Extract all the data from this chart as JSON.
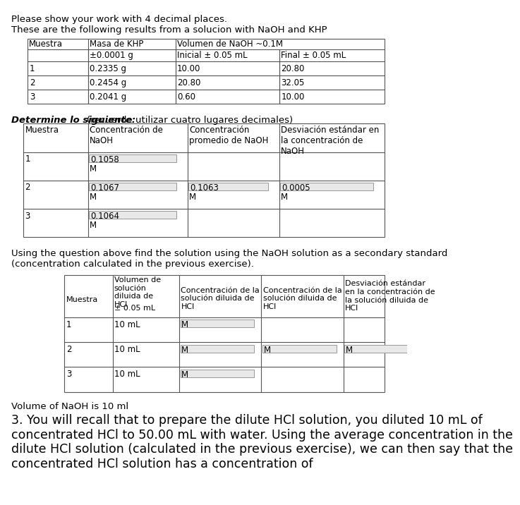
{
  "header_text": "Please show your work with 4 decimal places.",
  "intro_text": "These are the following results from a solucion with NaOH and KHP",
  "table1": {
    "rows": [
      [
        "1",
        "0.2335 g",
        "10.00",
        "20.80"
      ],
      [
        "2",
        "0.2454 g",
        "20.80",
        "32.05"
      ],
      [
        "3",
        "0.2041 g",
        "0.60",
        "10.00"
      ]
    ]
  },
  "section2_label": "Determine lo siguiente:",
  "section2_note": "(recuerde utilizar cuatro lugares decimales)",
  "table2": {
    "rows": [
      [
        "1",
        "0.1058",
        "",
        ""
      ],
      [
        "2",
        "0.1067",
        "0.1063",
        "0.0005"
      ],
      [
        "3",
        "0.1064",
        "",
        ""
      ]
    ]
  },
  "paragraph2": "Using the question above find the solution using the NaOH solution as a secondary standard\n(concentration calculated in the previous exercise).",
  "table3": {
    "rows": [
      [
        "1",
        "10 mL",
        "M",
        "",
        ""
      ],
      [
        "2",
        "10 mL",
        "M",
        "M",
        "M"
      ],
      [
        "3",
        "10 mL",
        "M",
        "",
        ""
      ]
    ]
  },
  "volume_text": "Volume of NaOH is 10 ml",
  "final_para": "3. You will recall that to prepare the dilute HCl solution, you diluted 10 mL of\nconcentrated HCl to 50.00 mL with water. Using the average concentration in the\ndilute HCl solution (calculated in the previous exercise), we can then say that the\nconcentrated HCl solution has a concentration of"
}
